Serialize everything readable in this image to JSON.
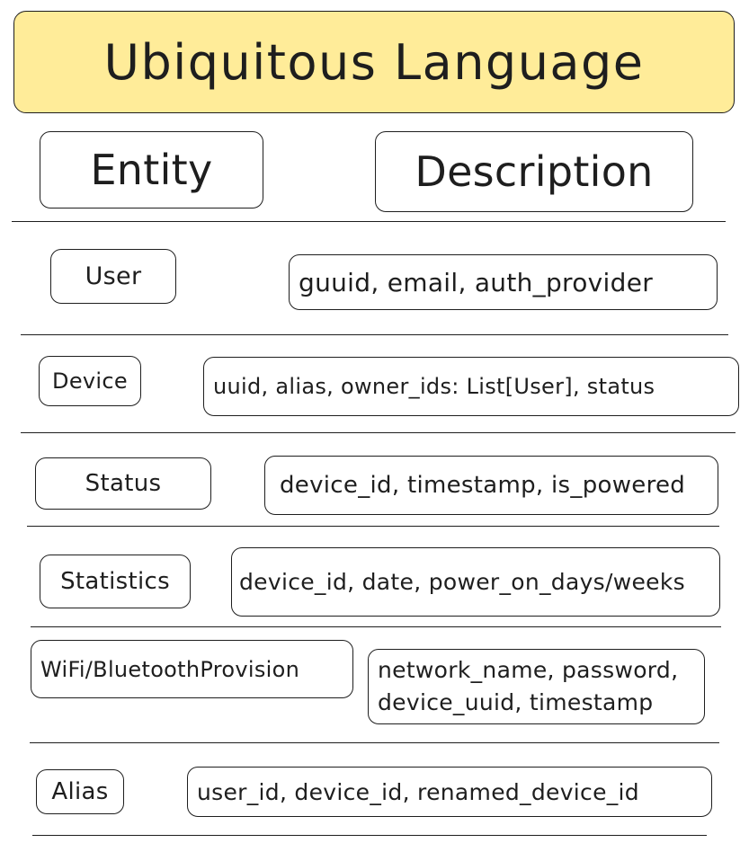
{
  "title": "Ubiquitous Language",
  "headers": {
    "entity": "Entity",
    "description": "Description"
  },
  "rows": [
    {
      "entity": "User",
      "description": "guuid, email, auth_provider"
    },
    {
      "entity": "Device",
      "description": "uuid, alias, owner_ids: List[User], status"
    },
    {
      "entity": "Status",
      "description": "device_id, timestamp, is_powered"
    },
    {
      "entity": "Statistics",
      "description": "device_id, date, power_on_days/weeks"
    },
    {
      "entity": "WiFi/BluetoothProvision",
      "description_lines": [
        "network_name, password,",
        "device_uuid, timestamp"
      ]
    },
    {
      "entity": "Alias",
      "description": "user_id, device_id, renamed_device_id"
    }
  ],
  "colors": {
    "title_fill": "#ffec99",
    "stroke": "#1e1e1e",
    "background": "#ffffff"
  }
}
